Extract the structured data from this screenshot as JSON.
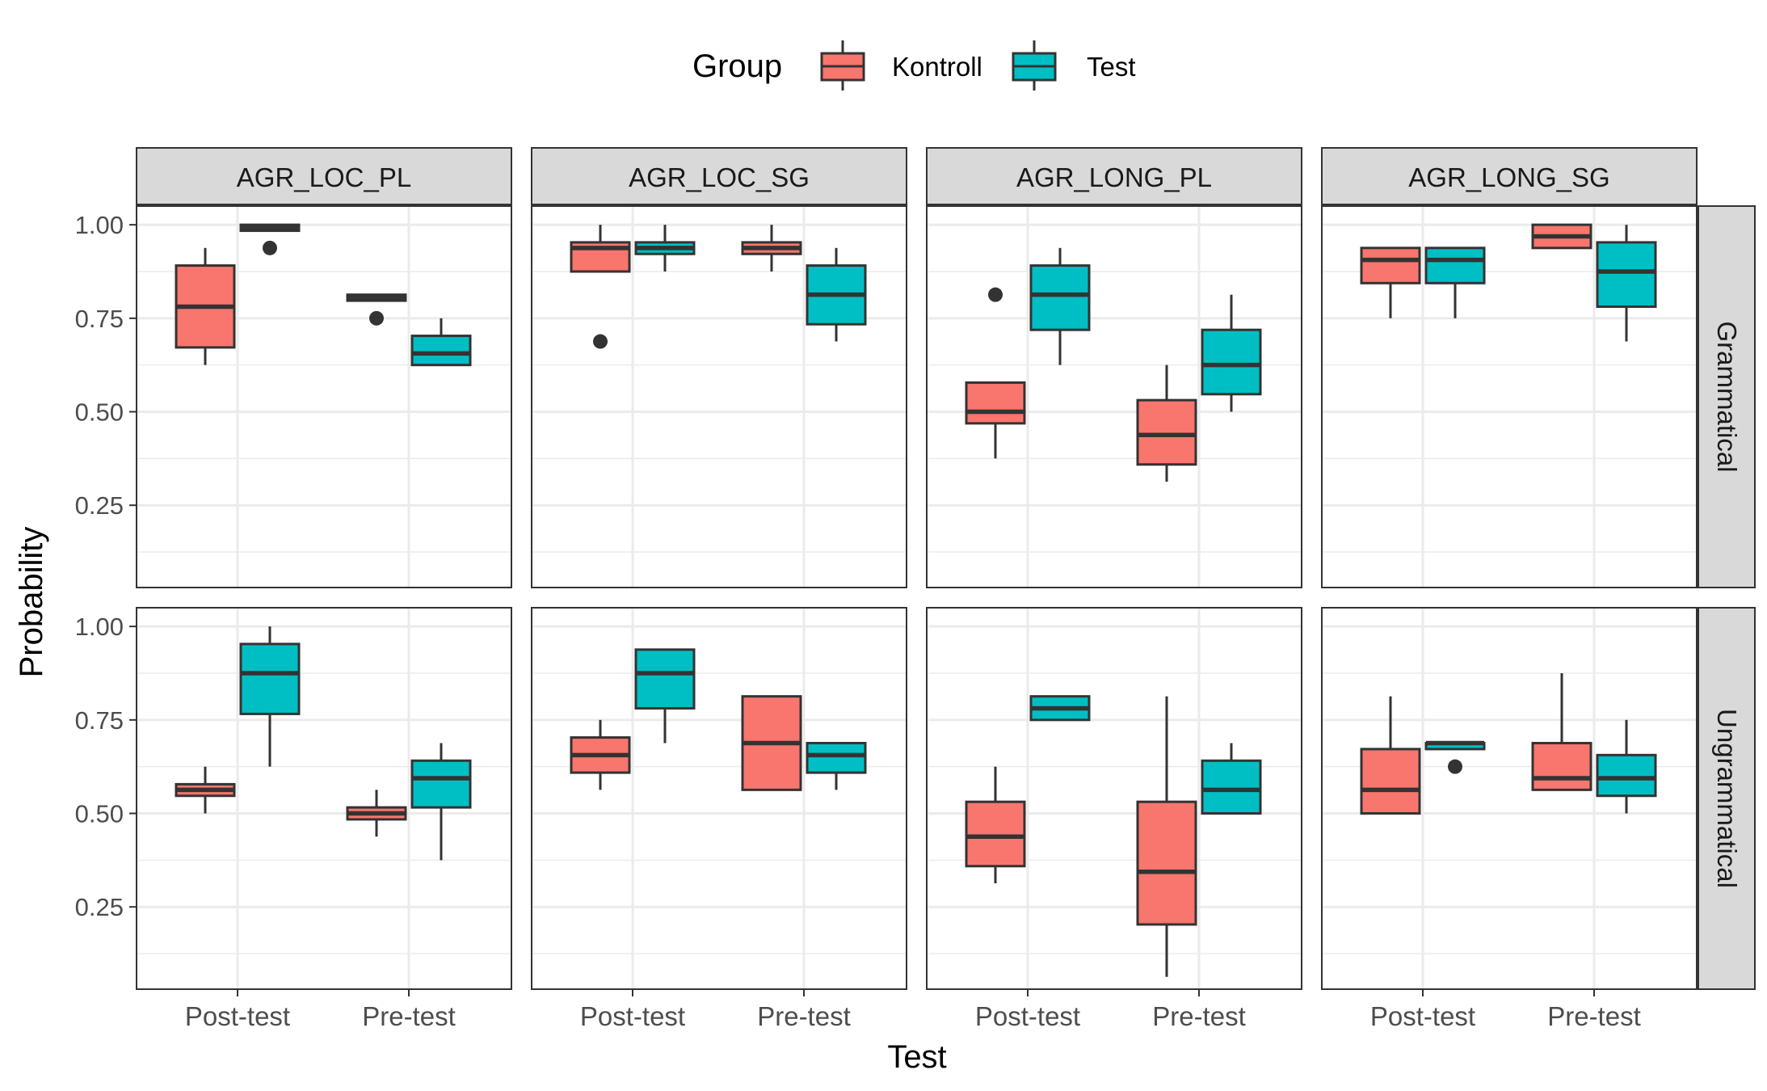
{
  "chart_data": {
    "type": "boxplot",
    "legend": {
      "title": "Group",
      "position": "top",
      "entries": [
        {
          "name": "Kontroll",
          "color": "#F8766D"
        },
        {
          "name": "Test",
          "color": "#00BFC4"
        }
      ]
    },
    "xlabel": "Test",
    "ylabel": "Probability",
    "x_categories": [
      "Post-test",
      "Pre-test"
    ],
    "y_ticks": [
      "0.25",
      "0.50",
      "0.75",
      "1.00"
    ],
    "ylim": [
      0.03,
      1.05
    ],
    "grid": true,
    "column_facets": [
      "AGR_LOC_PL",
      "AGR_LOC_SG",
      "AGR_LONG_PL",
      "AGR_LONG_SG"
    ],
    "row_facets": [
      "Grammatical",
      "Ungrammatical"
    ],
    "panels": [
      {
        "row": 0,
        "col": 0,
        "boxes": [
          {
            "x": "Post-test",
            "group": "Kontroll",
            "min": 0.625,
            "q1": 0.672,
            "median": 0.781,
            "q3": 0.891,
            "max": 0.938,
            "outliers": []
          },
          {
            "x": "Post-test",
            "group": "Test",
            "min": 0.984,
            "q1": 0.984,
            "median": 0.992,
            "q3": 1.0,
            "max": 1.0,
            "outliers": [
              0.938
            ]
          },
          {
            "x": "Pre-test",
            "group": "Kontroll",
            "min": 0.797,
            "q1": 0.797,
            "median": 0.805,
            "q3": 0.813,
            "max": 0.813,
            "outliers": [
              0.75
            ]
          },
          {
            "x": "Pre-test",
            "group": "Test",
            "min": 0.625,
            "q1": 0.625,
            "median": 0.656,
            "q3": 0.703,
            "max": 0.75,
            "outliers": []
          }
        ]
      },
      {
        "row": 0,
        "col": 1,
        "boxes": [
          {
            "x": "Post-test",
            "group": "Kontroll",
            "min": 0.875,
            "q1": 0.875,
            "median": 0.938,
            "q3": 0.953,
            "max": 1.0,
            "outliers": [
              0.688
            ]
          },
          {
            "x": "Post-test",
            "group": "Test",
            "min": 0.875,
            "q1": 0.922,
            "median": 0.938,
            "q3": 0.953,
            "max": 1.0,
            "outliers": []
          },
          {
            "x": "Pre-test",
            "group": "Kontroll",
            "min": 0.875,
            "q1": 0.922,
            "median": 0.938,
            "q3": 0.953,
            "max": 1.0,
            "outliers": []
          },
          {
            "x": "Pre-test",
            "group": "Test",
            "min": 0.688,
            "q1": 0.734,
            "median": 0.813,
            "q3": 0.891,
            "max": 0.938,
            "outliers": []
          }
        ]
      },
      {
        "row": 0,
        "col": 2,
        "boxes": [
          {
            "x": "Post-test",
            "group": "Kontroll",
            "min": 0.375,
            "q1": 0.469,
            "median": 0.5,
            "q3": 0.578,
            "max": 0.578,
            "outliers": [
              0.813
            ]
          },
          {
            "x": "Post-test",
            "group": "Test",
            "min": 0.625,
            "q1": 0.719,
            "median": 0.813,
            "q3": 0.891,
            "max": 0.938,
            "outliers": []
          },
          {
            "x": "Pre-test",
            "group": "Kontroll",
            "min": 0.313,
            "q1": 0.359,
            "median": 0.438,
            "q3": 0.531,
            "max": 0.625,
            "outliers": []
          },
          {
            "x": "Pre-test",
            "group": "Test",
            "min": 0.5,
            "q1": 0.547,
            "median": 0.625,
            "q3": 0.719,
            "max": 0.813,
            "outliers": []
          }
        ]
      },
      {
        "row": 0,
        "col": 3,
        "boxes": [
          {
            "x": "Post-test",
            "group": "Kontroll",
            "min": 0.75,
            "q1": 0.844,
            "median": 0.906,
            "q3": 0.938,
            "max": 0.938,
            "outliers": []
          },
          {
            "x": "Post-test",
            "group": "Test",
            "min": 0.75,
            "q1": 0.844,
            "median": 0.906,
            "q3": 0.938,
            "max": 0.938,
            "outliers": []
          },
          {
            "x": "Pre-test",
            "group": "Kontroll",
            "min": 0.938,
            "q1": 0.938,
            "median": 0.969,
            "q3": 1.0,
            "max": 1.0,
            "outliers": []
          },
          {
            "x": "Pre-test",
            "group": "Test",
            "min": 0.688,
            "q1": 0.781,
            "median": 0.875,
            "q3": 0.953,
            "max": 1.0,
            "outliers": []
          }
        ]
      },
      {
        "row": 1,
        "col": 0,
        "boxes": [
          {
            "x": "Post-test",
            "group": "Kontroll",
            "min": 0.5,
            "q1": 0.547,
            "median": 0.563,
            "q3": 0.578,
            "max": 0.625,
            "outliers": []
          },
          {
            "x": "Post-test",
            "group": "Test",
            "min": 0.625,
            "q1": 0.766,
            "median": 0.875,
            "q3": 0.953,
            "max": 1.0,
            "outliers": []
          },
          {
            "x": "Pre-test",
            "group": "Kontroll",
            "min": 0.438,
            "q1": 0.484,
            "median": 0.5,
            "q3": 0.516,
            "max": 0.563,
            "outliers": []
          },
          {
            "x": "Pre-test",
            "group": "Test",
            "min": 0.375,
            "q1": 0.516,
            "median": 0.594,
            "q3": 0.641,
            "max": 0.688,
            "outliers": []
          }
        ]
      },
      {
        "row": 1,
        "col": 1,
        "boxes": [
          {
            "x": "Post-test",
            "group": "Kontroll",
            "min": 0.563,
            "q1": 0.609,
            "median": 0.656,
            "q3": 0.703,
            "max": 0.75,
            "outliers": []
          },
          {
            "x": "Post-test",
            "group": "Test",
            "min": 0.688,
            "q1": 0.781,
            "median": 0.875,
            "q3": 0.938,
            "max": 0.938,
            "outliers": []
          },
          {
            "x": "Pre-test",
            "group": "Kontroll",
            "min": 0.563,
            "q1": 0.563,
            "median": 0.688,
            "q3": 0.813,
            "max": 0.813,
            "outliers": []
          },
          {
            "x": "Pre-test",
            "group": "Test",
            "min": 0.563,
            "q1": 0.609,
            "median": 0.656,
            "q3": 0.688,
            "max": 0.688,
            "outliers": []
          }
        ]
      },
      {
        "row": 1,
        "col": 2,
        "boxes": [
          {
            "x": "Post-test",
            "group": "Kontroll",
            "min": 0.313,
            "q1": 0.359,
            "median": 0.438,
            "q3": 0.531,
            "max": 0.625,
            "outliers": []
          },
          {
            "x": "Post-test",
            "group": "Test",
            "min": 0.75,
            "q1": 0.75,
            "median": 0.781,
            "q3": 0.813,
            "max": 0.813,
            "outliers": []
          },
          {
            "x": "Pre-test",
            "group": "Kontroll",
            "min": 0.063,
            "q1": 0.203,
            "median": 0.344,
            "q3": 0.531,
            "max": 0.813,
            "outliers": []
          },
          {
            "x": "Pre-test",
            "group": "Test",
            "min": 0.5,
            "q1": 0.5,
            "median": 0.563,
            "q3": 0.641,
            "max": 0.688,
            "outliers": []
          }
        ]
      },
      {
        "row": 1,
        "col": 3,
        "boxes": [
          {
            "x": "Post-test",
            "group": "Kontroll",
            "min": 0.5,
            "q1": 0.5,
            "median": 0.563,
            "q3": 0.672,
            "max": 0.813,
            "outliers": []
          },
          {
            "x": "Post-test",
            "group": "Test",
            "min": 0.672,
            "q1": 0.672,
            "median": 0.688,
            "q3": 0.688,
            "max": 0.688,
            "outliers": [
              0.625
            ]
          },
          {
            "x": "Pre-test",
            "group": "Kontroll",
            "min": 0.563,
            "q1": 0.563,
            "median": 0.594,
            "q3": 0.688,
            "max": 0.875,
            "outliers": []
          },
          {
            "x": "Pre-test",
            "group": "Test",
            "min": 0.5,
            "q1": 0.547,
            "median": 0.594,
            "q3": 0.656,
            "max": 0.75,
            "outliers": []
          }
        ]
      }
    ]
  }
}
